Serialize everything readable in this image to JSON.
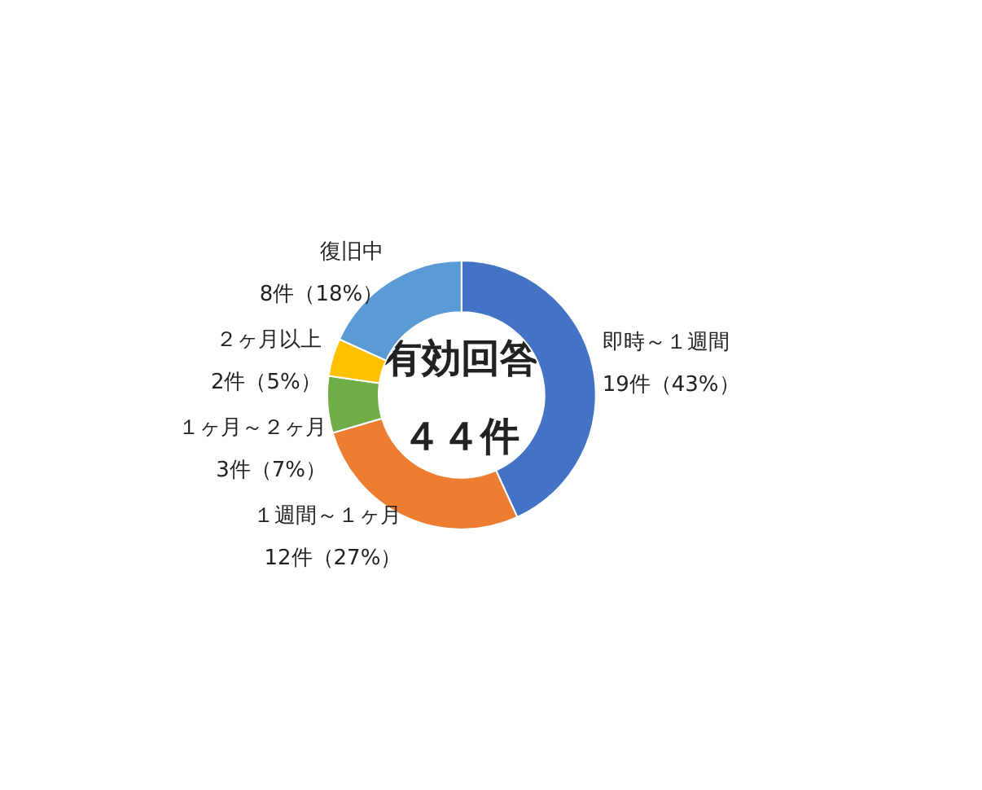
{
  "chart_data": {
    "type": "donut",
    "categories": [
      "即時～１週間",
      "１週間～１ヶ月",
      "１ヶ月～２ヶ月",
      "２ヶ月以上",
      "復旧中"
    ],
    "values": [
      19,
      12,
      3,
      2,
      8
    ],
    "colors": [
      "#4472c4",
      "#ed7d31",
      "#70ad47",
      "#ffc000",
      "#5b9bd5"
    ],
    "value_labels": [
      "19件（43%）",
      "12件（27%）",
      "3件（7%）",
      "2件（5%）",
      "8件（18%）"
    ],
    "annotations": [
      "有効回答",
      "４４件"
    ],
    "legend": false
  }
}
